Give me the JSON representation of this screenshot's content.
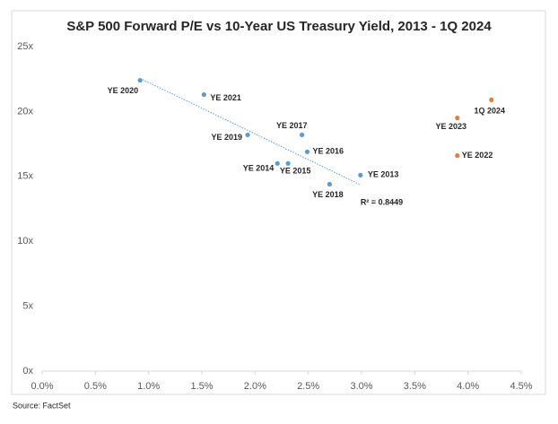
{
  "chart_data": {
    "type": "scatter",
    "title": "S&P 500 Forward P/E vs 10-Year US Treasury Yield, 2013 - 1Q 2024",
    "source": "Source: FactSet",
    "annotation": "R² = 0.8449",
    "trendline": true,
    "series": [
      {
        "color": "#5b9bd5",
        "x": [
          2.99,
          2.21,
          2.31,
          2.49,
          2.44,
          2.7,
          1.93,
          0.92,
          1.52
        ],
        "values": [
          15.1,
          16.0,
          16.0,
          16.9,
          18.2,
          14.4,
          18.2,
          22.4,
          21.3
        ],
        "labels": [
          "YE 2013",
          "YE 2014",
          "YE 2015",
          "YE 2016",
          "YE 2017",
          "YE 2018",
          "YE 2019",
          "YE 2020",
          "YE 2021"
        ]
      },
      {
        "color": "#ed7d31",
        "x": [
          3.9,
          3.9,
          4.22
        ],
        "values": [
          16.6,
          19.5,
          20.9
        ],
        "labels": [
          "YE 2022",
          "YE 2023",
          "1Q 2024"
        ]
      }
    ],
    "xlim": [
      0,
      4.5
    ],
    "xticks": [
      {
        "value": 0,
        "label": "0.0%"
      },
      {
        "value": 0.5,
        "label": "0.5%"
      },
      {
        "value": 1,
        "label": "1.0%"
      },
      {
        "value": 1.5,
        "label": "1.5%"
      },
      {
        "value": 2,
        "label": "2.0%"
      },
      {
        "value": 2.5,
        "label": "2.5%"
      },
      {
        "value": 3,
        "label": "3.0%"
      },
      {
        "value": 3.5,
        "label": "3.5%"
      },
      {
        "value": 4,
        "label": "4.0%"
      },
      {
        "value": 4.5,
        "label": "4.5%"
      }
    ],
    "ylim": [
      0,
      25
    ],
    "yticks": [
      {
        "value": 0,
        "label": "0x"
      },
      {
        "value": 5,
        "label": "5x"
      },
      {
        "value": 10,
        "label": "10x"
      },
      {
        "value": 15,
        "label": "15x"
      },
      {
        "value": 20,
        "label": "20x"
      },
      {
        "value": 25,
        "label": "25x"
      }
    ],
    "grid": false
  }
}
